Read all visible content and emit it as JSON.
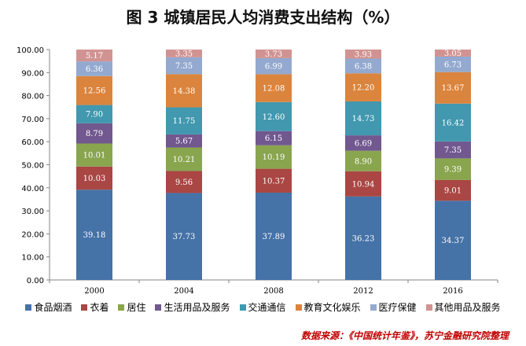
{
  "chart_data": {
    "type": "bar",
    "stacked": true,
    "title": "图 3  城镇居民人均消费支出结构（%）",
    "categories": [
      "2000",
      "2004",
      "2008",
      "2012",
      "2016"
    ],
    "ylim": [
      0,
      100
    ],
    "yticks": [
      "0.00",
      "10.00",
      "20.00",
      "30.00",
      "40.00",
      "50.00",
      "60.00",
      "70.00",
      "80.00",
      "90.00",
      "100.00"
    ],
    "legend_position": "bottom",
    "grid": false,
    "series": [
      {
        "name": "食品烟酒",
        "color": "#4572A7",
        "values": [
          39.18,
          37.73,
          37.89,
          36.23,
          34.37
        ],
        "labels": [
          "39.18",
          "37.73",
          "37.89",
          "36.23",
          "34.37"
        ]
      },
      {
        "name": "衣着",
        "color": "#AA4643",
        "values": [
          10.03,
          9.56,
          10.37,
          10.94,
          9.01
        ],
        "labels": [
          "10.03",
          "9.56",
          "10.37",
          "10.94",
          "9.01"
        ]
      },
      {
        "name": "居住",
        "color": "#89A54E",
        "values": [
          10.01,
          10.21,
          10.19,
          8.9,
          9.39
        ],
        "labels": [
          "10.01",
          "10.21",
          "10.19",
          "8.90",
          "9.39"
        ]
      },
      {
        "name": "生活用品及服务",
        "color": "#71588F",
        "values": [
          8.79,
          5.67,
          6.15,
          6.69,
          7.35
        ],
        "labels": [
          "8.79",
          "5.67",
          "6.15",
          "6.69",
          "7.35"
        ]
      },
      {
        "name": "交通通信",
        "color": "#4198AF",
        "values": [
          7.9,
          11.75,
          12.6,
          14.73,
          16.42
        ],
        "labels": [
          "7.90",
          "11.75",
          "12.60",
          "14.73",
          "16.42"
        ]
      },
      {
        "name": "教育文化娱乐",
        "color": "#DB843D",
        "values": [
          12.56,
          14.38,
          12.08,
          12.2,
          13.67
        ],
        "labels": [
          "12.56",
          "14.38",
          "12.08",
          "12.20",
          "13.67"
        ]
      },
      {
        "name": "医疗保健",
        "color": "#93A9CF",
        "values": [
          6.36,
          7.35,
          6.99,
          6.38,
          6.73
        ],
        "labels": [
          "6.36",
          "7.35",
          "6.99",
          "6.38",
          "6.73"
        ]
      },
      {
        "name": "其他用品及服务",
        "color": "#D19392",
        "values": [
          5.17,
          3.35,
          3.73,
          3.93,
          3.05
        ],
        "labels": [
          "5.17",
          "3.35",
          "3.73",
          "3.93",
          "3.05"
        ]
      }
    ]
  },
  "source_note": "数据来源：《中国统计年鉴》，苏宁金融研究院整理"
}
